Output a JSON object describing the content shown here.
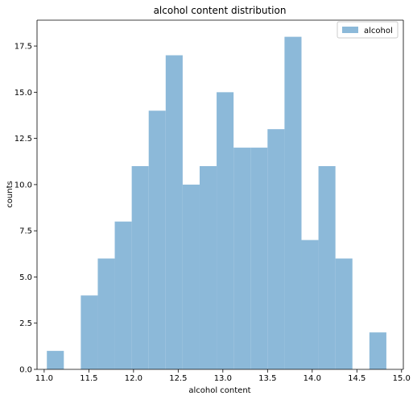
{
  "chart_data": {
    "type": "bar",
    "title": "alcohol content distribution",
    "xlabel": "alcohol content",
    "ylabel": "counts",
    "series": [
      {
        "name": "alcohol",
        "color": "#8cb9d9",
        "bins": [
          {
            "x0": 11.03,
            "x1": 11.22,
            "value": 1
          },
          {
            "x0": 11.22,
            "x1": 11.41,
            "value": 0
          },
          {
            "x0": 11.41,
            "x1": 11.6,
            "value": 4
          },
          {
            "x0": 11.6,
            "x1": 11.79,
            "value": 6
          },
          {
            "x0": 11.79,
            "x1": 11.98,
            "value": 8
          },
          {
            "x0": 11.98,
            "x1": 12.17,
            "value": 11
          },
          {
            "x0": 12.17,
            "x1": 12.36,
            "value": 14
          },
          {
            "x0": 12.36,
            "x1": 12.55,
            "value": 17
          },
          {
            "x0": 12.55,
            "x1": 12.74,
            "value": 10
          },
          {
            "x0": 12.74,
            "x1": 12.93,
            "value": 11
          },
          {
            "x0": 12.93,
            "x1": 13.12,
            "value": 15
          },
          {
            "x0": 13.12,
            "x1": 13.31,
            "value": 12
          },
          {
            "x0": 13.31,
            "x1": 13.5,
            "value": 12
          },
          {
            "x0": 13.5,
            "x1": 13.69,
            "value": 13
          },
          {
            "x0": 13.69,
            "x1": 13.88,
            "value": 18
          },
          {
            "x0": 13.88,
            "x1": 14.07,
            "value": 7
          },
          {
            "x0": 14.07,
            "x1": 14.26,
            "value": 11
          },
          {
            "x0": 14.26,
            "x1": 14.45,
            "value": 6
          },
          {
            "x0": 14.45,
            "x1": 14.64,
            "value": 0
          },
          {
            "x0": 14.64,
            "x1": 14.83,
            "value": 2
          }
        ]
      }
    ],
    "xlim": [
      10.92,
      15.02
    ],
    "ylim": [
      0,
      18.9
    ],
    "xticks": [
      "11.0",
      "11.5",
      "12.0",
      "12.5",
      "13.0",
      "13.5",
      "14.0",
      "14.5",
      "15.0"
    ],
    "yticks": [
      "0.0",
      "2.5",
      "5.0",
      "7.5",
      "10.0",
      "12.5",
      "15.0",
      "17.5"
    ],
    "grid": false,
    "legend": {
      "position": "top-right",
      "entries": [
        "alcohol"
      ]
    }
  }
}
